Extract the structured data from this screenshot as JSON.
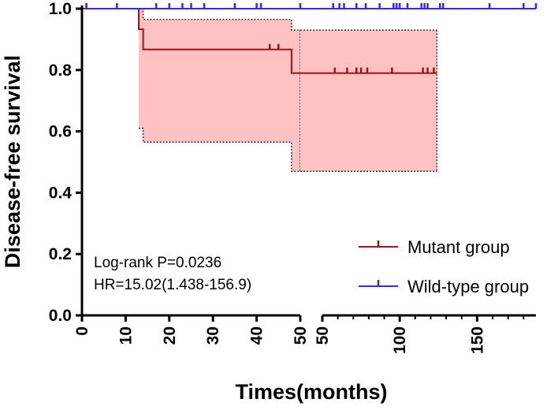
{
  "chart_data": {
    "type": "line",
    "subtype": "kaplan-meier",
    "title": "",
    "xlabel": "Times(months)",
    "ylabel": "Disease-free survival",
    "ylim": [
      0,
      1.0
    ],
    "yticks": [
      "0.0",
      "0.2",
      "0.4",
      "0.6",
      "0.8",
      "1.0"
    ],
    "x_axis_break": true,
    "x_segments": [
      {
        "range": [
          0,
          50
        ],
        "ticks": [
          "0",
          "10",
          "20",
          "30",
          "40",
          "50"
        ]
      },
      {
        "range": [
          50,
          188
        ],
        "ticks": [
          "50",
          "100",
          "150"
        ]
      }
    ],
    "annotations": [
      "Log-rank P=0.0236",
      "HR=15.02(1.438-156.9)"
    ],
    "legend_position": "bottom-right",
    "series": [
      {
        "name": "Mutant group",
        "color": "#a50f15",
        "steps": [
          [
            0,
            1.0
          ],
          [
            13,
            0.933
          ],
          [
            14,
            0.867
          ],
          [
            48,
            0.79
          ],
          [
            124,
            0.79
          ]
        ],
        "ci_fill": "#ffc2c2",
        "ci_upper": [
          [
            13,
            1.0
          ],
          [
            14,
            0.965
          ],
          [
            48,
            0.93
          ],
          [
            124,
            0.93
          ]
        ],
        "ci_lower": [
          [
            13,
            0.61
          ],
          [
            14,
            0.565
          ],
          [
            48,
            0.47
          ],
          [
            124,
            0.47
          ]
        ],
        "censored": [
          1,
          43,
          45,
          58,
          66,
          72,
          75,
          79,
          95,
          115,
          118,
          122
        ]
      },
      {
        "name": "Wild-type group",
        "color": "#2b2bff",
        "steps": [
          [
            0,
            1.0
          ],
          [
            188,
            1.0
          ]
        ],
        "censored": [
          8,
          17,
          20,
          23,
          25,
          28,
          35,
          40,
          41,
          50,
          57,
          61,
          64,
          72,
          78,
          87,
          96,
          98,
          100,
          105,
          114,
          116,
          118,
          126,
          128,
          158,
          180,
          188
        ]
      }
    ]
  }
}
